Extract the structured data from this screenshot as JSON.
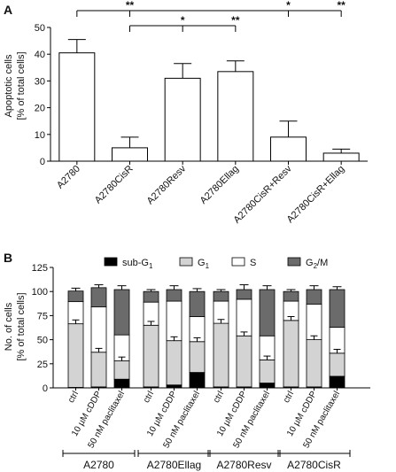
{
  "chart_data": [
    {
      "panel": "A",
      "type": "bar",
      "ylabel": "Apoptotic cells",
      "ylabel2": "[% of total cells]",
      "ylim": [
        0,
        50
      ],
      "yticks": [
        0,
        10,
        20,
        30,
        40,
        50
      ],
      "categories": [
        "A2780",
        "A2780CisR",
        "A2780Resv",
        "A2780Ellag",
        "A2780CisR+Resv",
        "A2780CisR+Ellag"
      ],
      "values": [
        40.5,
        5,
        31,
        33.5,
        9,
        3
      ],
      "errors": [
        5,
        4,
        5.5,
        4,
        6,
        1.5
      ],
      "significance": [
        {
          "from": 0,
          "to": [
            1,
            4,
            5
          ],
          "labels": [
            "**",
            "*",
            "**"
          ]
        },
        {
          "from": 1,
          "to": [
            2,
            3
          ],
          "labels": [
            "*",
            "**"
          ]
        }
      ],
      "bar_color": "#ffffff",
      "edge_color": "#000000"
    },
    {
      "panel": "B",
      "type": "bar",
      "stacked": true,
      "ylabel": "No. of cells",
      "ylabel2": "[% of total cells]",
      "ylim": [
        0,
        125
      ],
      "yticks": [
        0,
        25,
        50,
        75,
        100,
        125
      ],
      "legend": [
        {
          "name": "sub-G",
          "sub": "1",
          "color": "#000000"
        },
        {
          "name": "G",
          "sub": "1",
          "color": "#d3d3d3"
        },
        {
          "name": "S",
          "sub": "",
          "color": "#ffffff"
        },
        {
          "name": "G",
          "sub": "2",
          "suffix": "/M",
          "color": "#6b6b6b"
        }
      ],
      "treatments": [
        "ctrl",
        "10 µM cDDP",
        "50 nM paclitaxel"
      ],
      "groups": [
        {
          "name": "A2780",
          "bars": [
            [
              0.5,
              66,
              23,
              11
            ],
            [
              1,
              36,
              47,
              20
            ],
            [
              9,
              19,
              27,
              47
            ]
          ],
          "errors": [
            3,
            3,
            4
          ]
        },
        {
          "name": "A2780Ellag",
          "bars": [
            [
              1,
              64,
              24,
              11
            ],
            [
              3,
              46,
              41,
              12
            ],
            [
              16,
              32,
              26,
              26
            ]
          ],
          "errors": [
            2,
            4,
            3
          ]
        },
        {
          "name": "A2780Resv",
          "bars": [
            [
              1,
              66,
              23,
              10
            ],
            [
              1,
              53,
              38,
              10
            ],
            [
              5,
              24,
              25,
              48
            ]
          ],
          "errors": [
            2,
            5,
            4
          ]
        },
        {
          "name": "A2780CisR",
          "bars": [
            [
              1,
              69,
              20,
              10
            ],
            [
              1,
              49,
              37,
              15
            ],
            [
              12,
              24,
              27,
              39
            ]
          ],
          "errors": [
            2,
            4,
            3
          ]
        }
      ]
    }
  ]
}
